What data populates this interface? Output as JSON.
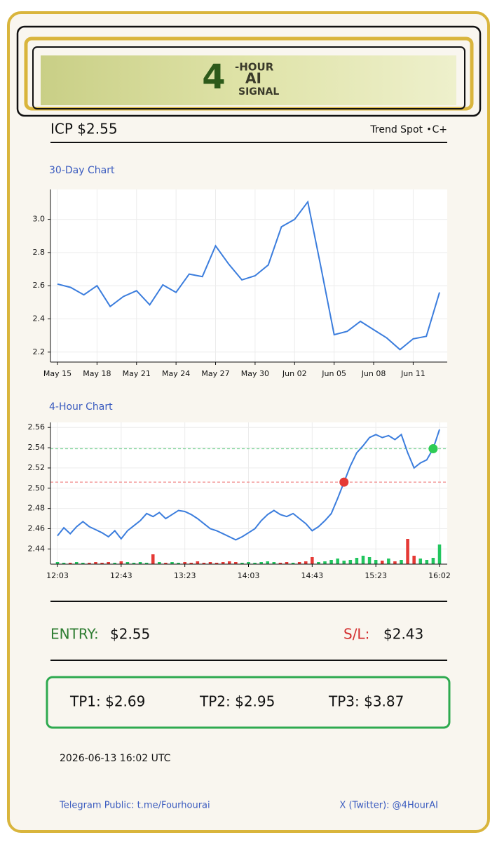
{
  "logo": {
    "number": "4",
    "top": "-HOUR",
    "middle": "AI",
    "bottom": "SIGNAL"
  },
  "header": {
    "ticker": "ICP $2.55",
    "source": "Trend Spot",
    "separator": "•",
    "grade": "C+"
  },
  "chart_data": [
    {
      "type": "line",
      "title": "30-Day Chart",
      "color": "#3b7ddd",
      "grid": true,
      "categories": [
        "May 15",
        null,
        null,
        "May 18",
        null,
        null,
        "May 21",
        null,
        null,
        "May 24",
        null,
        null,
        "May 27",
        null,
        null,
        "May 30",
        null,
        null,
        "Jun 02",
        null,
        null,
        "Jun 05",
        null,
        null,
        "Jun 08",
        null,
        null,
        "Jun 11",
        null,
        null
      ],
      "values": [
        2.61,
        2.59,
        2.545,
        2.6,
        2.475,
        2.535,
        2.57,
        2.485,
        2.605,
        2.56,
        2.67,
        2.655,
        2.84,
        2.73,
        2.635,
        2.66,
        2.725,
        2.955,
        3.0,
        3.105,
        2.71,
        2.305,
        2.325,
        2.385,
        2.335,
        2.285,
        2.215,
        2.28,
        2.295,
        2.56
      ],
      "ylim": [
        2.14,
        3.18
      ],
      "yticks": [
        2.2,
        2.4,
        2.6,
        2.8,
        {
          "value": 3,
          "label": "3.0"
        }
      ]
    },
    {
      "type": "line",
      "title": "4-Hour Chart",
      "color": "#3b7ddd",
      "grid": true,
      "categories": [
        "12:03",
        null,
        null,
        null,
        null,
        null,
        null,
        null,
        null,
        null,
        "12:43",
        null,
        null,
        null,
        null,
        null,
        null,
        null,
        null,
        null,
        "13:23",
        null,
        null,
        null,
        null,
        null,
        null,
        null,
        null,
        null,
        "14:03",
        null,
        null,
        null,
        null,
        null,
        null,
        null,
        null,
        null,
        "14:43",
        null,
        null,
        null,
        null,
        null,
        null,
        null,
        null,
        null,
        "15:23",
        null,
        null,
        null,
        null,
        null,
        null,
        null,
        null,
        null,
        "16:02"
      ],
      "values": [
        2.453,
        2.461,
        2.455,
        2.462,
        2.467,
        2.462,
        2.459,
        2.456,
        2.452,
        2.458,
        2.45,
        2.458,
        2.463,
        2.468,
        2.475,
        2.472,
        2.476,
        2.47,
        2.474,
        2.478,
        2.477,
        2.474,
        2.47,
        2.465,
        2.46,
        2.458,
        2.455,
        2.452,
        2.449,
        2.452,
        2.456,
        2.46,
        2.468,
        2.474,
        2.478,
        2.474,
        2.472,
        2.475,
        2.47,
        2.465,
        2.458,
        2.462,
        2.468,
        2.475,
        2.49,
        2.506,
        2.522,
        2.535,
        2.542,
        2.55,
        2.553,
        2.55,
        2.552,
        2.548,
        2.553,
        2.535,
        2.52,
        2.525,
        2.528,
        2.539,
        2.558
      ],
      "volume": [
        3,
        2,
        2,
        3,
        2,
        2,
        3,
        2,
        3,
        2,
        4,
        3,
        2,
        3,
        2,
        14,
        3,
        2,
        3,
        2,
        3,
        2,
        4,
        2,
        3,
        2,
        3,
        4,
        3,
        2,
        3,
        2,
        3,
        4,
        3,
        2,
        3,
        2,
        3,
        4,
        10,
        3,
        4,
        6,
        8,
        5,
        6,
        9,
        12,
        10,
        6,
        5,
        8,
        4,
        6,
        36,
        12,
        8,
        6,
        9,
        28
      ],
      "up_color": "#22c55e",
      "down_color": "#e53935",
      "hlines": [
        {
          "value": 2.506,
          "color": "#f08a8a"
        },
        {
          "value": 2.539,
          "color": "#7fd69b"
        }
      ],
      "markers": [
        {
          "index": 45,
          "color": "#e53935"
        },
        {
          "index": 59,
          "color": "#2ecc55"
        }
      ],
      "ylim": [
        2.425,
        2.565
      ],
      "yticks": [
        2.44,
        2.46,
        2.48,
        {
          "value": 2.5,
          "label": "2.50"
        },
        2.52,
        2.54,
        2.56
      ]
    }
  ],
  "trade": {
    "entry_label": "ENTRY:",
    "entry": "$2.55",
    "sl_label": "S/L:",
    "sl": "$2.43"
  },
  "targets": [
    "TP1: $2.69",
    "TP2: $2.95",
    "TP3: $3.87"
  ],
  "timestamp": "2026-06-13 16:02 UTC",
  "footer": {
    "telegram": "Telegram Public: t.me/Fourhourai",
    "twitter": "X (Twitter): @4HourAI"
  }
}
